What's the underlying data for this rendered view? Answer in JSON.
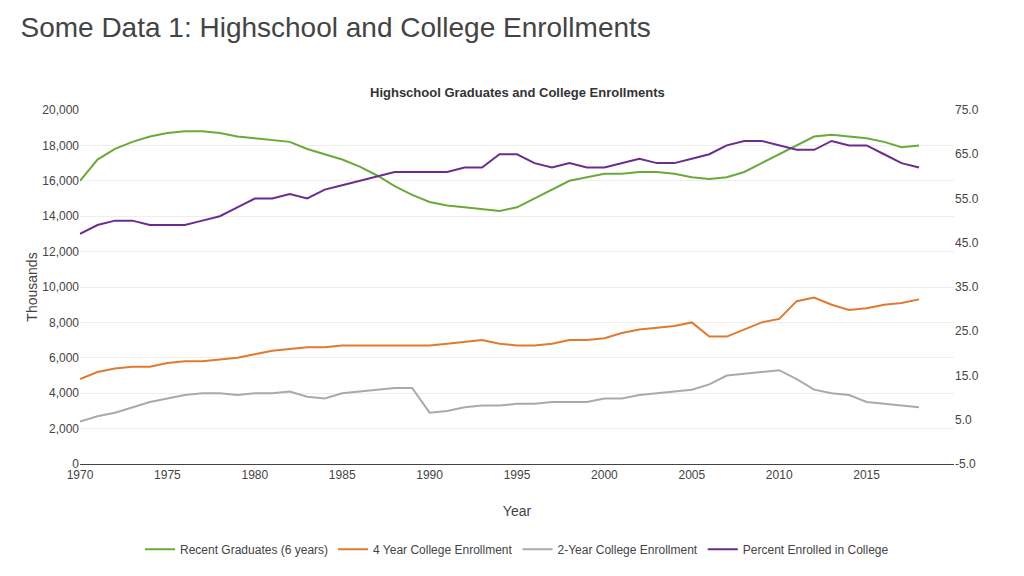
{
  "chart_data": {
    "type": "line",
    "title": "Some Data 1: Highschool and College Enrollments",
    "subtitle": "Highschool Graduates and College Enrollments",
    "x_label": "Year",
    "y_label": "Thousands",
    "x": [
      1970,
      1971,
      1972,
      1973,
      1974,
      1975,
      1976,
      1977,
      1978,
      1979,
      1980,
      1981,
      1982,
      1983,
      1984,
      1985,
      1986,
      1987,
      1988,
      1989,
      1990,
      1991,
      1992,
      1993,
      1994,
      1995,
      1996,
      1997,
      1998,
      1999,
      2000,
      2001,
      2002,
      2003,
      2004,
      2005,
      2006,
      2007,
      2008,
      2009,
      2010,
      2011,
      2012,
      2013,
      2014,
      2015,
      2016,
      2017,
      2018
    ],
    "series": [
      {
        "name": "Recent Graduates (6 years)",
        "color": "#6aaa3a",
        "values": [
          16000,
          17200,
          17800,
          18200,
          18500,
          18700,
          18800,
          18800,
          18700,
          18500,
          18400,
          18300,
          18200,
          17800,
          17500,
          17200,
          16800,
          16300,
          15700,
          15200,
          14800,
          14600,
          14500,
          14400,
          14300,
          14500,
          15000,
          15500,
          16000,
          16200,
          16400,
          16400,
          16500,
          16500,
          16400,
          16200,
          16100,
          16200,
          16500,
          17000,
          17500,
          18000,
          18500,
          18600,
          18500,
          18400,
          18200,
          17900,
          18000
        ]
      },
      {
        "name": "4 Year College Enrollment",
        "color": "#e07a30",
        "values": [
          4800,
          5200,
          5400,
          5500,
          5500,
          5700,
          5800,
          5800,
          5900,
          6000,
          6200,
          6400,
          6500,
          6600,
          6600,
          6700,
          6700,
          6700,
          6700,
          6700,
          6700,
          6800,
          6900,
          7000,
          6800,
          6700,
          6700,
          6800,
          7000,
          7000,
          7100,
          7400,
          7600,
          7700,
          7800,
          8000,
          7200,
          7200,
          7600,
          8000,
          8200,
          9200,
          9400,
          9000,
          8700,
          8800,
          9000,
          9100,
          9300
        ]
      },
      {
        "name": "2-Year College Enrollment",
        "color": "#aaaaaa",
        "values": [
          2400,
          2700,
          2900,
          3200,
          3500,
          3700,
          3900,
          4000,
          4000,
          3900,
          4000,
          4000,
          4100,
          3800,
          3700,
          4000,
          4100,
          4200,
          4300,
          4300,
          2900,
          3000,
          3200,
          3300,
          3300,
          3400,
          3400,
          3500,
          3500,
          3500,
          3700,
          3700,
          3900,
          4000,
          4100,
          4200,
          4500,
          5000,
          5100,
          5200,
          5300,
          4800,
          4200,
          4000,
          3900,
          3500,
          3400,
          3300,
          3200
        ]
      },
      {
        "name": "Percent Enrolled in College",
        "color": "#6a2d8f",
        "axis": "y2",
        "values": [
          47,
          49,
          50,
          50,
          49,
          49,
          49,
          50,
          51,
          53,
          55,
          55,
          56,
          55,
          57,
          58,
          59,
          60,
          61,
          61,
          61,
          61,
          62,
          62,
          65,
          65,
          63,
          62,
          63,
          62,
          62,
          63,
          64,
          63,
          63,
          64,
          65,
          67,
          68,
          68,
          67,
          66,
          66,
          68,
          67,
          67,
          65,
          63,
          62
        ]
      }
    ],
    "xlim": [
      1970,
      2020
    ],
    "xticks": [
      1970,
      1975,
      1980,
      1985,
      1990,
      1995,
      2000,
      2005,
      2010,
      2015
    ],
    "ylim": [
      0,
      20000
    ],
    "yticks": [
      0,
      {
        "value": 2000,
        "label": "2,000"
      },
      {
        "value": 4000,
        "label": "4,000"
      },
      {
        "value": 6000,
        "label": "6,000"
      },
      {
        "value": 8000,
        "label": "8,000"
      },
      {
        "value": 10000,
        "label": "10,000"
      },
      {
        "value": 12000,
        "label": "12,000"
      },
      {
        "value": 14000,
        "label": "14,000"
      },
      {
        "value": 16000,
        "label": "16,000"
      },
      {
        "value": 18000,
        "label": "18,000"
      },
      {
        "value": 20000,
        "label": "20,000"
      }
    ],
    "y2lim": [
      -5.0,
      75.0
    ],
    "y2ticks": [
      {
        "value": -5.0,
        "label": "-5.0"
      },
      {
        "value": 5.0,
        "label": "5.0"
      },
      {
        "value": 15.0,
        "label": "15.0"
      },
      {
        "value": 25.0,
        "label": "25.0"
      },
      {
        "value": 35.0,
        "label": "35.0"
      },
      {
        "value": 45.0,
        "label": "45.0"
      },
      {
        "value": 55.0,
        "label": "55.0"
      },
      {
        "value": 65.0,
        "label": "65.0"
      },
      {
        "value": 75.0,
        "label": "75.0"
      }
    ],
    "grid": "y",
    "legend": "bottom"
  }
}
